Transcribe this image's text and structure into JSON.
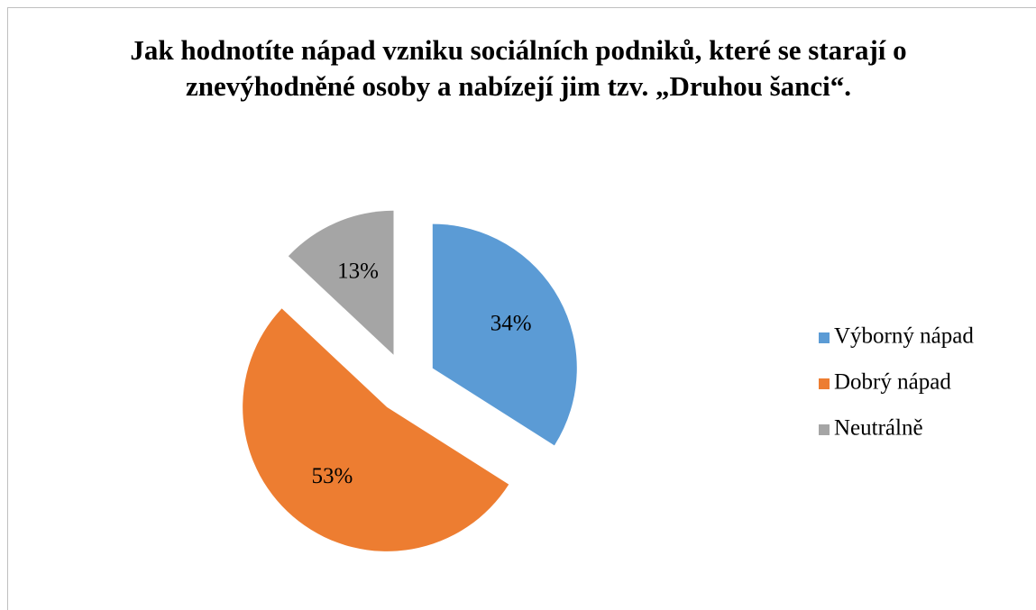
{
  "chart_data": {
    "type": "pie",
    "title": "Jak hodnotíte nápad vzniku sociálních podniků, které se starají o znevýhodněné osoby a nabízejí jim tzv. „Druhou šanci“.",
    "categories": [
      "Výborný nápad",
      "Dobrý nápad",
      "Neutrálně"
    ],
    "values": [
      34,
      53,
      13
    ],
    "value_labels": [
      "34%",
      "53%",
      "13%"
    ],
    "colors": [
      "#5b9bd5",
      "#ed7d31",
      "#a5a5a5"
    ],
    "legend": "right"
  }
}
